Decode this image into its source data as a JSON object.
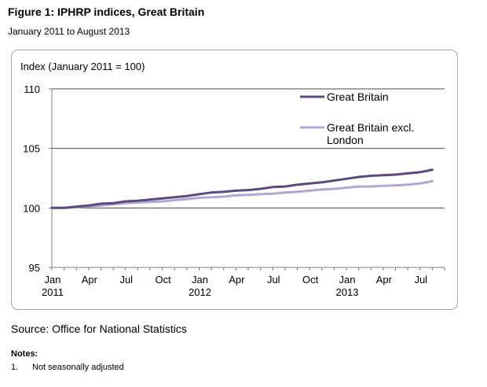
{
  "figure": {
    "title": "Figure 1: IPHRP indices, Great Britain",
    "subtitle": "January 2011 to August 2013"
  },
  "source": "Source: Office for National Statistics",
  "notes": {
    "heading": "Notes:",
    "items": [
      {
        "number": "1.",
        "text": "Not seasonally adjusted"
      }
    ]
  },
  "colors": {
    "great_britain": "#5b4a7e",
    "excl_london": "#b3a6d3",
    "gridline": "#4a4a4a",
    "axis": "#7f7f7f"
  },
  "chart_data": {
    "type": "line",
    "ylabel": "Index (January  2011 = 100)",
    "ylim": [
      95,
      110
    ],
    "yticks": [
      95,
      100,
      105,
      110
    ],
    "grid": true,
    "legend_position": "top-right",
    "x_tick_labels": [
      {
        "month": "Jan",
        "year": "2011"
      },
      {
        "month": "Apr",
        "year": ""
      },
      {
        "month": "Jul",
        "year": ""
      },
      {
        "month": "Oct",
        "year": ""
      },
      {
        "month": "Jan",
        "year": "2012"
      },
      {
        "month": "Apr",
        "year": ""
      },
      {
        "month": "Jul",
        "year": ""
      },
      {
        "month": "Oct",
        "year": ""
      },
      {
        "month": "Jan",
        "year": "2013"
      },
      {
        "month": "Apr",
        "year": ""
      },
      {
        "month": "Jul",
        "year": ""
      }
    ],
    "x": [
      "2011-01",
      "2011-02",
      "2011-03",
      "2011-04",
      "2011-05",
      "2011-06",
      "2011-07",
      "2011-08",
      "2011-09",
      "2011-10",
      "2011-11",
      "2011-12",
      "2012-01",
      "2012-02",
      "2012-03",
      "2012-04",
      "2012-05",
      "2012-06",
      "2012-07",
      "2012-08",
      "2012-09",
      "2012-10",
      "2012-11",
      "2012-12",
      "2013-01",
      "2013-02",
      "2013-03",
      "2013-04",
      "2013-05",
      "2013-06",
      "2013-07",
      "2013-08"
    ],
    "series": [
      {
        "name": "Great Britain",
        "values": [
          100.0,
          100.0,
          100.1,
          100.2,
          100.35,
          100.4,
          100.55,
          100.6,
          100.7,
          100.8,
          100.9,
          101.0,
          101.15,
          101.3,
          101.35,
          101.45,
          101.5,
          101.6,
          101.75,
          101.8,
          101.95,
          102.05,
          102.15,
          102.3,
          102.45,
          102.6,
          102.7,
          102.75,
          102.8,
          102.9,
          103.0,
          103.2
        ]
      },
      {
        "name": "Great Britain excl. London",
        "values": [
          100.0,
          100.0,
          100.05,
          100.15,
          100.2,
          100.3,
          100.4,
          100.45,
          100.5,
          100.55,
          100.65,
          100.75,
          100.85,
          100.9,
          100.95,
          101.05,
          101.1,
          101.15,
          101.2,
          101.3,
          101.35,
          101.45,
          101.55,
          101.6,
          101.7,
          101.8,
          101.8,
          101.85,
          101.9,
          101.95,
          102.05,
          102.25
        ]
      }
    ],
    "legend": [
      {
        "label_lines": [
          "Great Britain"
        ]
      },
      {
        "label_lines": [
          "Great Britain excl.",
          "London"
        ]
      }
    ]
  }
}
